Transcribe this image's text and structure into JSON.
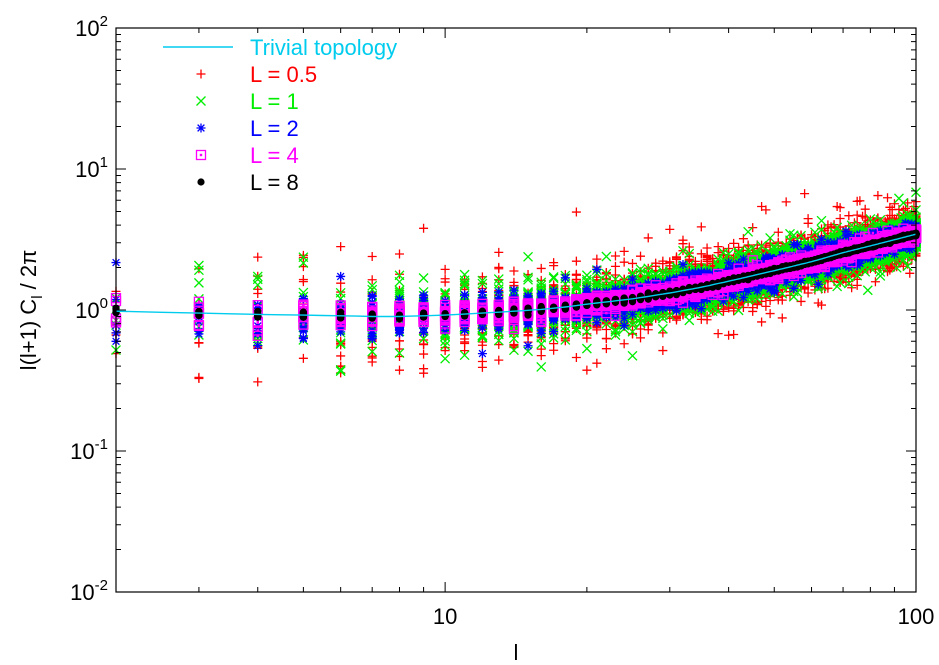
{
  "chart_data": {
    "type": "scatter",
    "title": "",
    "xlabel": "l",
    "ylabel": "l(l+1) C",
    "ylabel_sub": "l",
    "ylabel_tail": " / 2π",
    "xscale": "log",
    "yscale": "log",
    "xlim": [
      2,
      100
    ],
    "ylim": [
      0.01,
      100
    ],
    "x_ticks": [
      {
        "value": 10,
        "label": "10"
      },
      {
        "value": 100,
        "label": "100"
      }
    ],
    "y_ticks": [
      {
        "value": 0.01,
        "base": "10",
        "exp": "-2"
      },
      {
        "value": 0.1,
        "base": "10",
        "exp": "-1"
      },
      {
        "value": 1,
        "base": "10",
        "exp": "0"
      },
      {
        "value": 10,
        "base": "10",
        "exp": "1"
      },
      {
        "value": 100,
        "base": "10",
        "exp": "2"
      }
    ],
    "grid": false,
    "legend_position": "top-left",
    "reference_curve": {
      "name": "Trivial topology",
      "color": "#00ccee",
      "x": [
        2,
        3,
        4,
        5,
        6,
        7,
        8,
        9,
        10,
        12,
        14,
        16,
        18,
        20,
        25,
        30,
        35,
        40,
        50,
        60,
        70,
        80,
        90,
        100
      ],
      "y": [
        0.98,
        0.95,
        0.93,
        0.92,
        0.91,
        0.9,
        0.9,
        0.91,
        0.92,
        0.95,
        0.98,
        1.01,
        1.05,
        1.1,
        1.2,
        1.32,
        1.45,
        1.6,
        1.9,
        2.2,
        2.55,
        2.85,
        3.15,
        3.45
      ]
    },
    "series": [
      {
        "name": "L = 0.5",
        "color": "#ff0000",
        "marker": "plus",
        "spread": 1.1,
        "seed": 11
      },
      {
        "name": "L = 1",
        "color": "#00ee00",
        "marker": "cross",
        "spread": 0.8,
        "seed": 23
      },
      {
        "name": "L = 2",
        "color": "#0000ff",
        "marker": "star",
        "spread": 0.45,
        "seed": 37
      },
      {
        "name": "L = 4",
        "color": "#ff00ff",
        "marker": "square",
        "spread": 0.22,
        "seed": 51
      },
      {
        "name": "L = 8",
        "color": "#000000",
        "marker": "dot",
        "spread": 0.05,
        "seed": 73
      }
    ]
  }
}
